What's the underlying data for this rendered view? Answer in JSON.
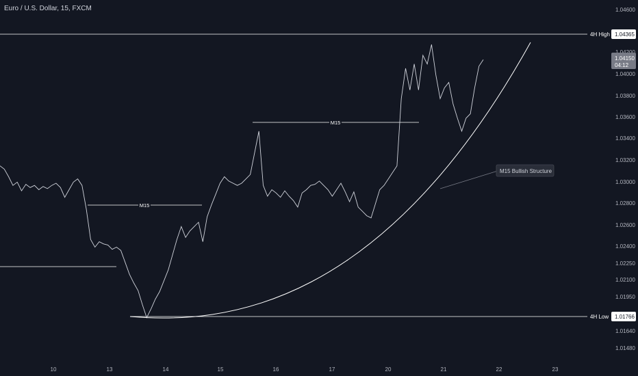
{
  "header": {
    "title": "Euro / U.S. Dollar, 15, FXCM"
  },
  "chart_data": {
    "type": "line",
    "title": "Euro / U.S. Dollar, 15, FXCM",
    "ylim": [
      1.0138,
      1.0466
    ],
    "y_axis_ticks": [
      "1.04600",
      "1.04400",
      "1.04200",
      "1.04000",
      "1.03800",
      "1.03600",
      "1.03400",
      "1.03200",
      "1.03000",
      "1.02800",
      "1.02600",
      "1.02400",
      "1.02250",
      "1.02100",
      "1.01950",
      "1.01800",
      "1.01640",
      "1.01480"
    ],
    "x_axis_ticks": [
      "10",
      "13",
      "14",
      "15",
      "16",
      "17",
      "20",
      "21",
      "22",
      "23"
    ],
    "series": [
      {
        "values": [
          1.0318,
          1.0315,
          1.0308,
          1.03,
          1.0303,
          1.0295,
          1.0301,
          1.0298,
          1.03,
          1.0296,
          1.0299,
          1.0297,
          1.03,
          1.0302,
          1.0298,
          1.0289,
          1.0296,
          1.0303,
          1.0306,
          1.03,
          1.0278,
          1.025,
          1.0243,
          1.0248,
          1.0246,
          1.0245,
          1.0241,
          1.0243,
          1.024,
          1.0229,
          1.0218,
          1.021,
          1.0203,
          1.019,
          1.0178,
          1.0186,
          1.0195,
          1.0202,
          1.0212,
          1.0222,
          1.0236,
          1.025,
          1.0262,
          1.0252,
          1.0258,
          1.0262,
          1.0266,
          1.0248,
          1.0271,
          1.0282,
          1.0292,
          1.0302,
          1.0308,
          1.0304,
          1.0302,
          1.03,
          1.0302,
          1.0306,
          1.031,
          1.033,
          1.035,
          1.03,
          1.029,
          1.0296,
          1.0293,
          1.0289,
          1.0295,
          1.029,
          1.0286,
          1.028,
          1.0293,
          1.0296,
          1.03,
          1.0301,
          1.0304,
          1.03,
          1.0296,
          1.029,
          1.0296,
          1.0302,
          1.0294,
          1.0285,
          1.0294,
          1.028,
          1.0276,
          1.0272,
          1.027,
          1.0283,
          1.0296,
          1.03,
          1.0306,
          1.0312,
          1.0318,
          1.038,
          1.0408,
          1.0388,
          1.0412,
          1.0388,
          1.042,
          1.0412,
          1.043,
          1.0402,
          1.038,
          1.039,
          1.0395,
          1.0375,
          1.0362,
          1.035,
          1.0362,
          1.0366,
          1.039,
          1.041,
          1.0416
        ]
      }
    ],
    "levels": [
      {
        "label": "4H High",
        "value": "1.04365"
      },
      {
        "label": "4H Low",
        "value": "1.01766"
      }
    ],
    "current_price": {
      "value": "1.04150",
      "countdown": "04:12"
    },
    "structure_labels": [
      "M15",
      "M15"
    ],
    "annotation": "M15 Bullish Structure",
    "colors": {
      "background": "#131722",
      "line": "#d1d4dc",
      "text": "#b2b5be",
      "price_tag": "#787b86",
      "level_tag": "#ffffff"
    }
  }
}
